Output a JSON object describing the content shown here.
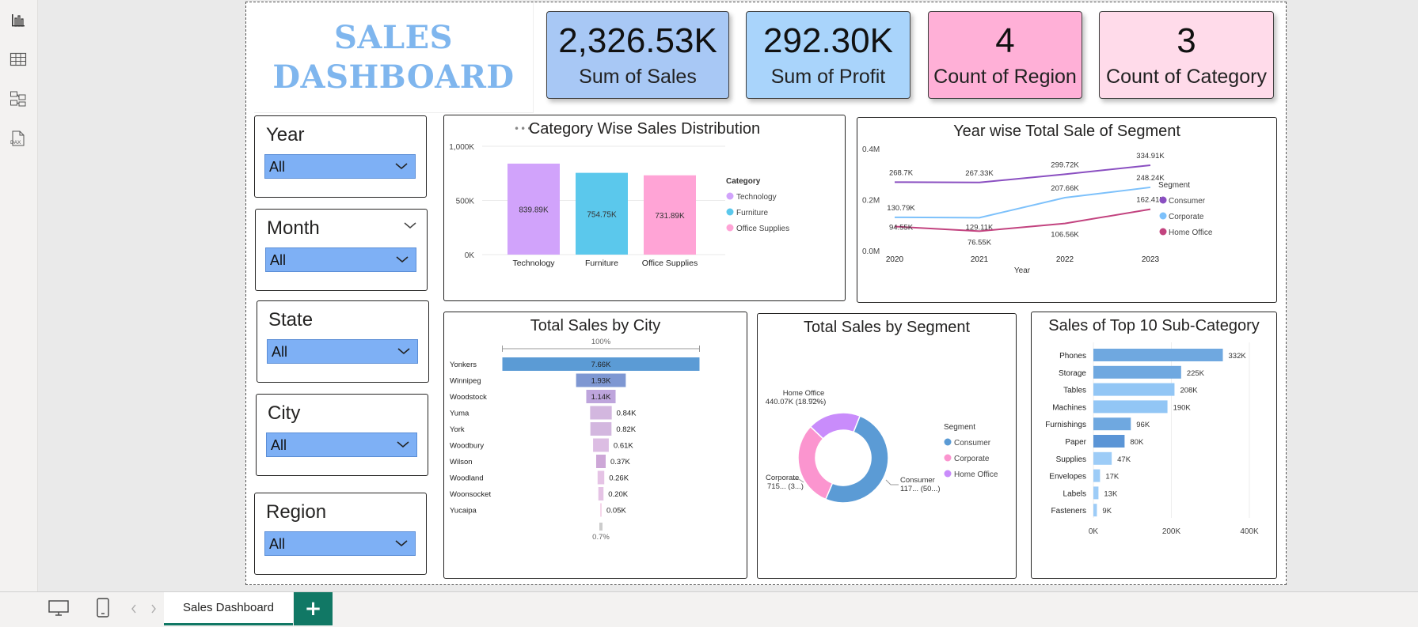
{
  "title": {
    "line1": "SALES",
    "line2": "DASHBOARD"
  },
  "kpis": [
    {
      "value": "2,326.53K",
      "label": "Sum of Sales",
      "color": "#a8c8f5"
    },
    {
      "value": "292.30K",
      "label": "Sum of Profit",
      "color": "#a9d4fb"
    },
    {
      "value": "4",
      "label": "Count of Region",
      "color": "#ffb0d7"
    },
    {
      "value": "3",
      "label": "Count of Category",
      "color": "#ffdbea"
    }
  ],
  "slicers": [
    {
      "title": "Year",
      "value": "All"
    },
    {
      "title": "Month",
      "value": "All"
    },
    {
      "title": "State",
      "value": "All"
    },
    {
      "title": "City",
      "value": "All"
    },
    {
      "title": "Region",
      "value": "All"
    }
  ],
  "rail_icons": [
    "report-view-icon",
    "table-view-icon",
    "model-view-icon",
    "dax-query-icon"
  ],
  "rail_dax_text": "DAX",
  "bottom": {
    "tab_label": "Sales Dashboard",
    "add_label": "+"
  },
  "colors": {
    "accent": "#117865",
    "slicer_fill": "#7eb0f5"
  },
  "chart_data": [
    {
      "id": "category",
      "type": "bar",
      "title": "Category Wise Sales Distribution",
      "categories": [
        "Technology",
        "Furniture",
        "Office Supplies"
      ],
      "values": [
        839.89,
        754.75,
        731.89
      ],
      "value_labels": [
        "839.89K",
        "754.75K",
        "731.89K"
      ],
      "colors": [
        "#d1a3fb",
        "#5bc8ec",
        "#ffa4d6"
      ],
      "yticks": [
        "0K",
        "500K",
        "1,000K"
      ],
      "ylim": [
        0,
        1000
      ],
      "legend_title": "Category",
      "legend": [
        "Technology",
        "Furniture",
        "Office Supplies"
      ],
      "legend_position": "right"
    },
    {
      "id": "segment_year",
      "type": "line",
      "title": "Year wise Total Sale of Segment",
      "x": [
        "2020",
        "2021",
        "2022",
        "2023"
      ],
      "xlabel": "Year",
      "yticks": [
        "0.0M",
        "0.2M",
        "0.4M"
      ],
      "ylim": [
        0,
        400
      ],
      "legend_title": "Segment",
      "legend_position": "right",
      "series": [
        {
          "name": "Consumer",
          "color": "#8a4fc1",
          "values": [
            268.7,
            267.33,
            299.72,
            334.91
          ],
          "labels": [
            "268.7K",
            "267.33K",
            "299.72K",
            "334.91K"
          ]
        },
        {
          "name": "Corporate",
          "color": "#7dc1fb",
          "values": [
            130.79,
            129.11,
            207.66,
            248.24
          ],
          "labels": [
            "130.79K",
            "129.11K",
            "207.66K",
            "248.24K"
          ]
        },
        {
          "name": "Home Office",
          "color": "#c2437f",
          "values": [
            94.55,
            76.55,
            106.56,
            162.41
          ],
          "labels": [
            "94.55K",
            "76.55K",
            "106.56K",
            "162.41K"
          ]
        }
      ]
    },
    {
      "id": "city",
      "type": "bar",
      "title": "Total Sales by City",
      "top_label": "100%",
      "bottom_label": "0.7%",
      "categories": [
        "Yonkers",
        "Winnipeg",
        "Woodstock",
        "Yuma",
        "York",
        "Woodbury",
        "Wilson",
        "Woodland",
        "Woonsocket",
        "Yucaipa"
      ],
      "values": [
        7.66,
        1.93,
        1.14,
        0.84,
        0.82,
        0.61,
        0.37,
        0.26,
        0.2,
        0.05
      ],
      "value_labels": [
        "7.66K",
        "1.93K",
        "1.14K",
        "0.84K",
        "0.82K",
        "0.61K",
        "0.37K",
        "0.26K",
        "0.20K",
        "0.05K"
      ],
      "colors": [
        "#5b9bd5",
        "#7e97d2",
        "#bea5dc",
        "#d3b7df",
        "#d3b7df",
        "#dcbde3",
        "#cda7d7",
        "#e5c3e5",
        "#e5c3e5",
        "#f6d6ea"
      ]
    },
    {
      "id": "segment_share",
      "type": "pie",
      "title": "Total Sales by Segment",
      "legend_title": "Segment",
      "legend_position": "right",
      "slices": [
        {
          "name": "Consumer",
          "value": 1170,
          "color": "#5b9bd5",
          "label1": "Consumer",
          "label2": "117... (50...)"
        },
        {
          "name": "Corporate",
          "value": 715,
          "color": "#fb95cf",
          "label1": "Corporate",
          "label2": "715... (3...)"
        },
        {
          "name": "Home Office",
          "value": 440.07,
          "color": "#c98cfb",
          "label1": "Home Office",
          "label2": "440.07K (18.92%)"
        }
      ]
    },
    {
      "id": "subcategory",
      "type": "bar",
      "title": "Sales of Top 10 Sub-Category",
      "categories": [
        "Phones",
        "Storage",
        "Tables",
        "Machines",
        "Furnishings",
        "Paper",
        "Supplies",
        "Envelopes",
        "Labels",
        "Fasteners"
      ],
      "values": [
        332,
        225,
        208,
        190,
        96,
        80,
        47,
        17,
        13,
        9
      ],
      "value_labels": [
        "332K",
        "225K",
        "208K",
        "190K",
        "96K",
        "80K",
        "47K",
        "17K",
        "13K",
        "9K"
      ],
      "colors": [
        "#6fa8e0",
        "#6fa8e0",
        "#92c6f5",
        "#92c6f5",
        "#6fa8e0",
        "#5b95d6",
        "#9dccf7",
        "#9dccf7",
        "#9dccf7",
        "#9dccf7"
      ],
      "xticks": [
        "0K",
        "200K",
        "400K"
      ],
      "xlim": [
        0,
        400
      ]
    }
  ]
}
